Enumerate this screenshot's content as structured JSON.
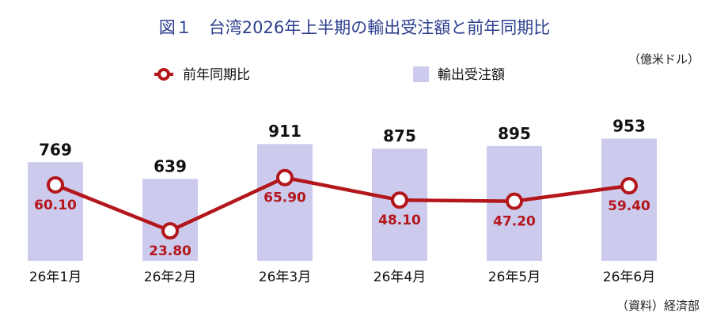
{
  "title": "図１　台湾2026年上半期の輸出受注額と前年同期比",
  "unit": "（億米ドル）",
  "source": "（資料）経済部",
  "colors": {
    "bar": "#cccbee",
    "line": "#b3161b",
    "title": "#2d3f8f"
  },
  "chart_data": {
    "type": "bar",
    "categories": [
      "26年1月",
      "26年2月",
      "26年3月",
      "26年4月",
      "26年5月",
      "26年6月"
    ],
    "series": [
      {
        "name": "輸出受注額",
        "type": "bar",
        "values": [
          769,
          639,
          911,
          875,
          895,
          953
        ],
        "labels": [
          "769",
          "639",
          "911",
          "875",
          "895",
          "953"
        ]
      },
      {
        "name": "前年同期比",
        "type": "line",
        "values": [
          60.1,
          23.8,
          65.9,
          48.1,
          47.2,
          59.4
        ],
        "labels": [
          "60.10",
          "23.80",
          "65.90",
          "48.10",
          "47.20",
          "59.40"
        ]
      }
    ],
    "legend_position": "top",
    "grid": false
  }
}
